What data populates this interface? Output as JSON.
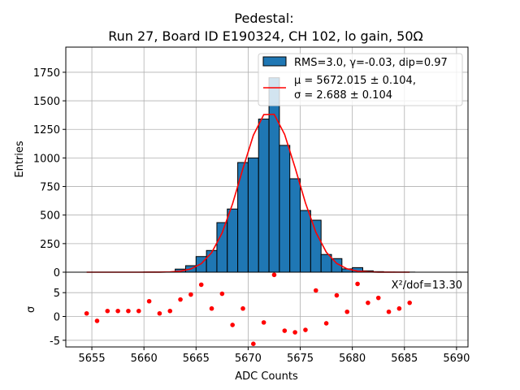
{
  "chart_data": {
    "type": "bar",
    "title": [
      "Pedestal:",
      "Run 27, Board ID E190324, CH 102, lo gain, 50Ω"
    ],
    "xlabel": "ADC Counts",
    "ylabel": "Entries",
    "residual_ylabel": "σ",
    "xlim": [
      5652.5,
      5691.1
    ],
    "ylim": [
      0,
      1970
    ],
    "residual_ylim": [
      -6.4,
      9.3
    ],
    "xticks": [
      5655,
      5660,
      5665,
      5670,
      5675,
      5680,
      5685,
      5690
    ],
    "yticks": [
      0,
      250,
      500,
      750,
      1000,
      1250,
      1500,
      1750
    ],
    "residual_yticks": [
      -5,
      0,
      5
    ],
    "grid": true,
    "bin_width": 1,
    "bin_starts": [
      5654,
      5655,
      5656,
      5657,
      5658,
      5659,
      5660,
      5661,
      5662,
      5663,
      5664,
      5665,
      5666,
      5667,
      5668,
      5669,
      5670,
      5671,
      5672,
      5673,
      5674,
      5675,
      5676,
      5677,
      5678,
      5679,
      5680,
      5681,
      5682,
      5683,
      5684,
      5685
    ],
    "counts": [
      0,
      0,
      0,
      0,
      0,
      0,
      1,
      1,
      2,
      27,
      57,
      137,
      190,
      434,
      553,
      960,
      1000,
      1340,
      1702,
      1110,
      818,
      540,
      455,
      155,
      119,
      29,
      40,
      12,
      5,
      1,
      1,
      1
    ],
    "fit": {
      "mu": 5672.015,
      "sigma": 2.688,
      "amplitude": 1405
    },
    "residuals": [
      0.64,
      -0.92,
      1.15,
      1.15,
      1.15,
      1.15,
      3.2,
      0.64,
      1.15,
      3.56,
      4.6,
      6.67,
      1.67,
      4.77,
      -1.78,
      1.67,
      -5.75,
      -1.26,
      8.74,
      -2.99,
      -3.33,
      -2.82,
      5.46,
      -1.44,
      4.43,
      0.98,
      6.84,
      2.87,
      3.9,
      0.98,
      1.67,
      2.87
    ],
    "legend": {
      "placement": "top-right",
      "hist_label": "RMS=3.0, γ=-0.03, dip=0.97",
      "fit_label_1": "μ = 5672.015 ± 0.104,",
      "fit_label_2": "σ = 2.688 ± 0.104"
    },
    "annotation": "X²/dof=13.30",
    "colors": {
      "bar": "#1f77b4",
      "fit": "#ff0000",
      "residual": "#ff0000",
      "grid": "#b0b0b0"
    }
  }
}
